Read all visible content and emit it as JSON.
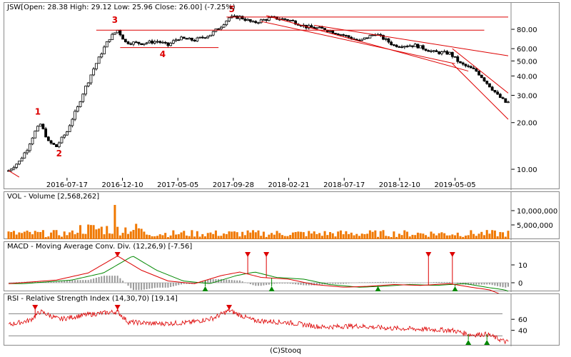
{
  "chart_data": [
    {
      "type": "candlestick",
      "title": "JSW",
      "ohlc_label": "[Open: 28.38  High: 29.12  Low: 25.96  Close: 26.00] (-7.25%)",
      "y_scale": "log",
      "ylim": [
        9,
        100
      ],
      "y_ticks": [
        10,
        20,
        30,
        40,
        50,
        60,
        80
      ],
      "y_tick_labels": [
        "10.00",
        "20.00",
        "30.00",
        "40.00",
        "50.00",
        "60.00",
        "80.00"
      ],
      "x_tick_labels": [
        "2016-07-17",
        "2016-12-10",
        "2017-05-05",
        "2017-09-28",
        "2018-02-21",
        "2018-07-17",
        "2018-12-10",
        "2019-05-05"
      ],
      "x_ticks": [
        "2016-07-17",
        "2016-12-10",
        "2017-05-05",
        "2017-09-28",
        "2018-02-21",
        "2018-07-17",
        "2018-12-10",
        "2019-05-05"
      ],
      "xlim": [
        "2016-02-14",
        "2019-09-22"
      ],
      "price_path": [
        [
          "2016-02-14",
          9.8
        ],
        [
          "2016-03-13",
          11.2
        ],
        [
          "2016-04-03",
          13.5
        ],
        [
          "2016-04-24",
          17.5
        ],
        [
          "2016-05-08",
          19.5
        ],
        [
          "2016-05-29",
          15.0
        ],
        [
          "2016-06-19",
          14.0
        ],
        [
          "2016-07-17",
          17.5
        ],
        [
          "2016-08-14",
          25.0
        ],
        [
          "2016-09-11",
          37.0
        ],
        [
          "2016-10-09",
          52.0
        ],
        [
          "2016-11-06",
          70.0
        ],
        [
          "2016-11-27",
          79.0
        ],
        [
          "2016-12-18",
          66.0
        ],
        [
          "2017-01-29",
          65.0
        ],
        [
          "2017-03-12",
          67.0
        ],
        [
          "2017-04-09",
          63.0
        ],
        [
          "2017-05-05",
          70.0
        ],
        [
          "2017-06-18",
          68.0
        ],
        [
          "2017-07-30",
          74.0
        ],
        [
          "2017-08-27",
          84.0
        ],
        [
          "2017-09-17",
          95.0
        ],
        [
          "2017-10-15",
          96.0
        ],
        [
          "2017-11-19",
          88.0
        ],
        [
          "2018-01-07",
          95.0
        ],
        [
          "2018-02-21",
          92.0
        ],
        [
          "2018-04-08",
          83.0
        ],
        [
          "2018-05-27",
          80.0
        ],
        [
          "2018-07-17",
          73.0
        ],
        [
          "2018-08-26",
          67.0
        ],
        [
          "2018-10-07",
          75.0
        ],
        [
          "2018-11-25",
          63.0
        ],
        [
          "2019-01-20",
          63.0
        ],
        [
          "2019-03-10",
          57.0
        ],
        [
          "2019-04-21",
          56.0
        ],
        [
          "2019-05-19",
          48.0
        ],
        [
          "2019-06-30",
          43.0
        ],
        [
          "2019-07-28",
          36.0
        ],
        [
          "2019-08-25",
          30.0
        ],
        [
          "2019-09-15",
          27.0
        ]
      ],
      "annotations": [
        "1",
        "2",
        "3",
        "4",
        "5"
      ],
      "horizontal_lines": [
        96,
        79,
        61
      ],
      "colors": {
        "up": "#ffffff",
        "down": "#000000",
        "lines": "#dd0000"
      }
    },
    {
      "type": "bar",
      "title": "VOL - Volume [2,568,262]",
      "y_ticks": [
        5000000,
        10000000
      ],
      "y_tick_labels": [
        "5,000,000",
        "10,000,000"
      ],
      "ylim": [
        0,
        13000000
      ],
      "typical_volume": 1800000,
      "peak_volume": 12000000,
      "colors": {
        "bar": "#f07800"
      }
    },
    {
      "type": "line",
      "title": "MACD - Moving Average Conv. Div. (12,26,9) [-7.56]",
      "y_ticks": [
        0,
        10
      ],
      "y_tick_labels": [
        "0",
        "10"
      ],
      "ylim": [
        -4,
        18
      ],
      "macd_path": [
        [
          "2016-02-14",
          -0.5
        ],
        [
          "2016-06-19",
          1.5
        ],
        [
          "2016-09-11",
          5.5
        ],
        [
          "2016-11-27",
          15.0
        ],
        [
          "2017-01-29",
          7.0
        ],
        [
          "2017-04-09",
          1.0
        ],
        [
          "2017-06-18",
          -0.5
        ],
        [
          "2017-08-27",
          4.0
        ],
        [
          "2017-10-15",
          6.0
        ],
        [
          "2017-12-10",
          3.0
        ],
        [
          "2018-02-21",
          2.0
        ],
        [
          "2018-04-29",
          -1.0
        ],
        [
          "2018-07-17",
          -2.5
        ],
        [
          "2018-09-16",
          -2.0
        ],
        [
          "2018-11-25",
          -1.0
        ],
        [
          "2019-02-03",
          -1.5
        ],
        [
          "2019-04-21",
          -0.5
        ],
        [
          "2019-06-16",
          -2.5
        ],
        [
          "2019-08-04",
          -4.0
        ],
        [
          "2019-09-15",
          -7.56
        ]
      ],
      "signal_lag_days": 40,
      "sell_signals": [
        "2016-11-27",
        "2017-11-05",
        "2017-12-24",
        "2019-02-24",
        "2019-04-28"
      ],
      "buy_signals": [
        "2017-07-16",
        "2018-01-07",
        "2018-10-14",
        "2019-05-05"
      ],
      "colors": {
        "macd": "#dd0000",
        "signal": "#008800",
        "hist": "#999999"
      }
    },
    {
      "type": "line",
      "title": "RSI - Relative Strength Index (14,30,70) [19.14]",
      "y_ticks": [
        40,
        60
      ],
      "y_tick_labels": [
        "40",
        "60"
      ],
      "ylim": [
        15,
        90
      ],
      "levels": [
        30,
        70
      ],
      "rsi_path": [
        [
          "2016-02-14",
          50
        ],
        [
          "2016-04-10",
          58
        ],
        [
          "2016-05-08",
          74
        ],
        [
          "2016-06-26",
          60
        ],
        [
          "2016-09-04",
          68
        ],
        [
          "2016-11-27",
          74
        ],
        [
          "2016-12-25",
          55
        ],
        [
          "2017-03-12",
          52
        ],
        [
          "2017-06-04",
          54
        ],
        [
          "2017-08-06",
          62
        ],
        [
          "2017-09-17",
          76
        ],
        [
          "2017-11-19",
          58
        ],
        [
          "2018-02-21",
          54
        ],
        [
          "2018-05-20",
          46
        ],
        [
          "2018-08-19",
          48
        ],
        [
          "2018-11-11",
          44
        ],
        [
          "2019-02-10",
          42
        ],
        [
          "2019-04-28",
          40
        ],
        [
          "2019-06-16",
          32
        ],
        [
          "2019-07-28",
          33
        ],
        [
          "2019-09-15",
          19.14
        ]
      ],
      "sell_signals": [
        "2016-04-24",
        "2016-11-27",
        "2017-09-17"
      ],
      "buy_signals": [
        "2019-06-09",
        "2019-07-28"
      ],
      "colors": {
        "rsi": "#dd0000",
        "levels": "#888888"
      }
    }
  ],
  "footer": "(C)Stooq"
}
